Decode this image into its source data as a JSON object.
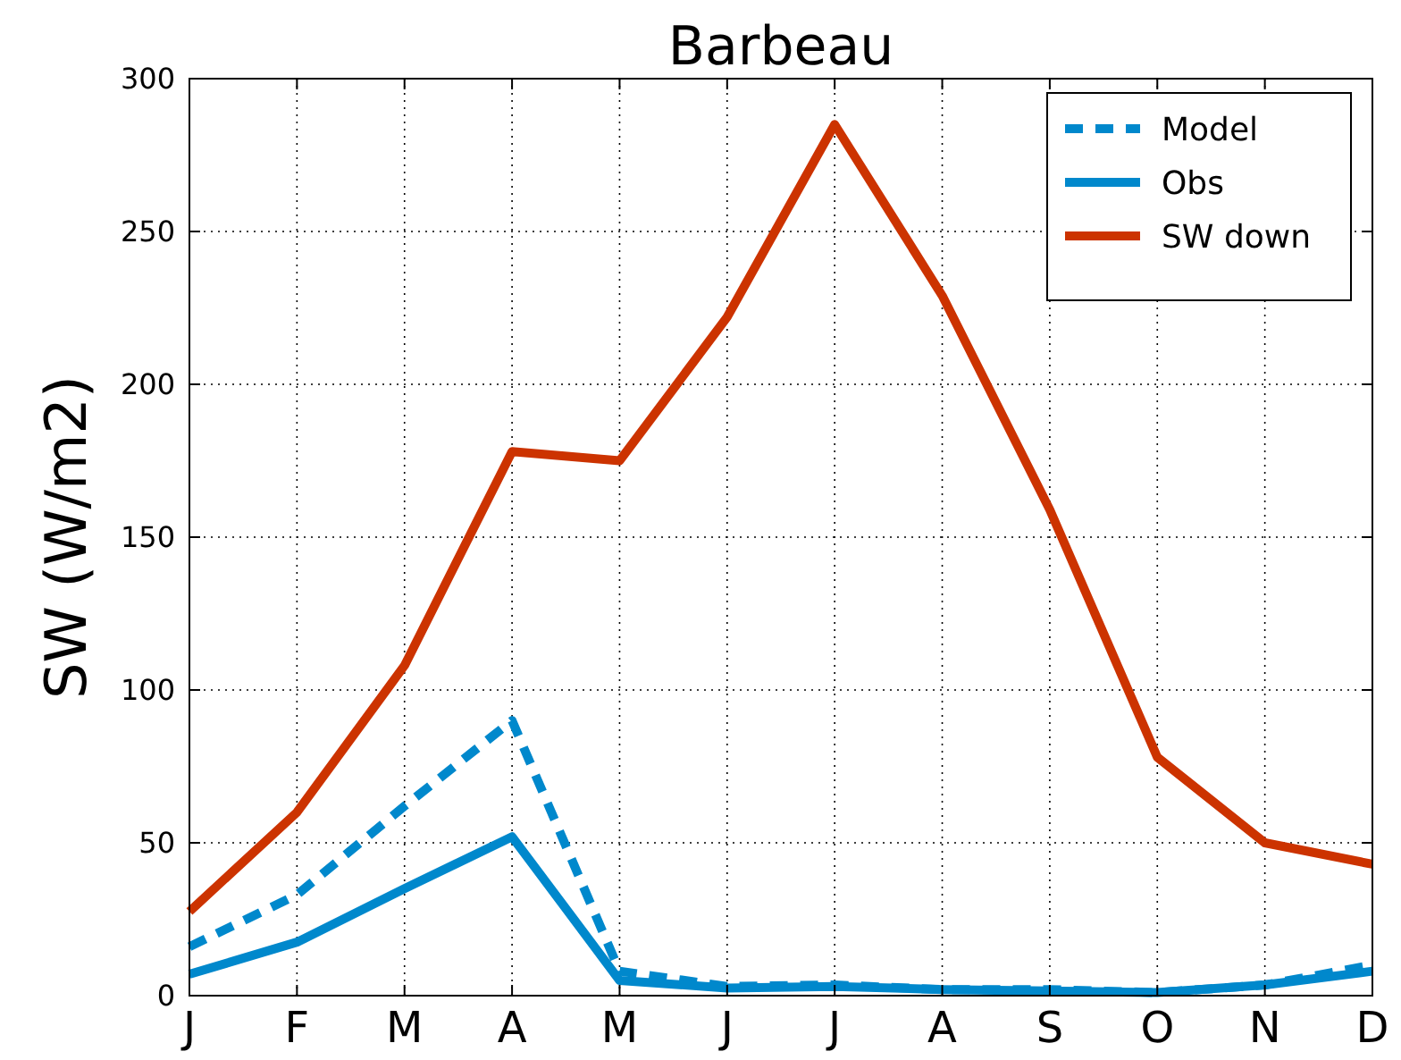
{
  "chart_data": {
    "type": "line",
    "title": "Barbeau",
    "ylabel": "SW (W/m2)",
    "categories": [
      "J",
      "F",
      "M",
      "A",
      "M",
      "J",
      "J",
      "A",
      "S",
      "O",
      "N",
      "D"
    ],
    "series": [
      {
        "name": "Model",
        "color": "#0088cc",
        "line_style": "dashed",
        "values": [
          16,
          33,
          62,
          90,
          8,
          3,
          3.5,
          2,
          2,
          1,
          3.5,
          10
        ]
      },
      {
        "name": "Obs",
        "color": "#0088cc",
        "line_style": "solid",
        "values": [
          7,
          17.5,
          35,
          52,
          5,
          2.5,
          3,
          2,
          1.5,
          1,
          3.5,
          8
        ]
      },
      {
        "name": "SW down",
        "color": "#cc3300",
        "line_style": "solid",
        "values": [
          27.5,
          60,
          108,
          178,
          175,
          222,
          285,
          229,
          159,
          78,
          50,
          43
        ]
      }
    ],
    "ylim": [
      0,
      300
    ],
    "yticks": [
      0,
      50,
      100,
      150,
      200,
      250,
      300
    ],
    "grid": true,
    "legend": "top right"
  }
}
